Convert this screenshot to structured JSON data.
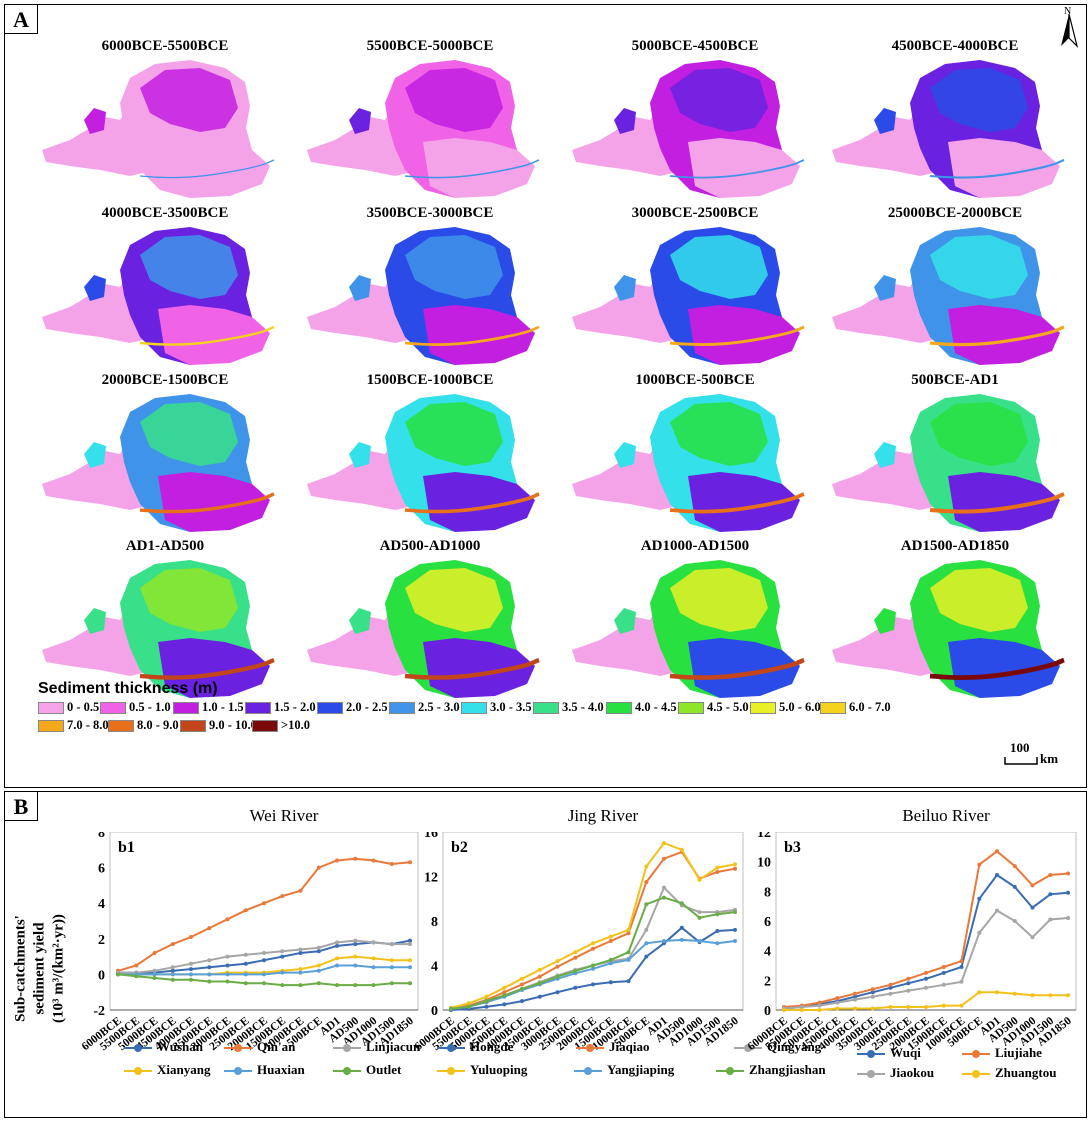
{
  "panel_a": {
    "tag": "A",
    "north": "N",
    "maps": [
      {
        "title": "6000BCE-5500BCE",
        "level": 0.05
      },
      {
        "title": "5500BCE-5000BCE",
        "level": 0.12
      },
      {
        "title": "5000BCE-4500BCE",
        "level": 0.2
      },
      {
        "title": "4500BCE-4000BCE",
        "level": 0.28
      },
      {
        "title": "4000BCE-3500BCE",
        "level": 0.36
      },
      {
        "title": "3500BCE-3000BCE",
        "level": 0.42
      },
      {
        "title": "3000BCE-2500BCE",
        "level": 0.48
      },
      {
        "title": "25000BCE-2000BCE",
        "level": 0.54
      },
      {
        "title": "2000BCE-1500BCE",
        "level": 0.6
      },
      {
        "title": "1500BCE-1000BCE",
        "level": 0.66
      },
      {
        "title": "1000BCE-500BCE",
        "level": 0.7
      },
      {
        "title": "500BCE-AD1",
        "level": 0.74
      },
      {
        "title": "AD1-AD500",
        "level": 0.82
      },
      {
        "title": "AD500-AD1000",
        "level": 0.86
      },
      {
        "title": "AD1000-AD1500",
        "level": 0.9
      },
      {
        "title": "AD1500-AD1850",
        "level": 0.94
      }
    ],
    "legend_title": "Sediment thickness (m)",
    "legend": [
      {
        "label": "0 - 0.5",
        "color": "#f5a3e8"
      },
      {
        "label": "0.5 - 1.0",
        "color": "#f062e6"
      },
      {
        "label": "1.0 - 1.5",
        "color": "#c21fe0"
      },
      {
        "label": "1.5 - 2.0",
        "color": "#6a22e0"
      },
      {
        "label": "2.0 - 2.5",
        "color": "#2a4be8"
      },
      {
        "label": "2.5 - 3.0",
        "color": "#3f94ea"
      },
      {
        "label": "3.0 - 3.5",
        "color": "#34e0ea"
      },
      {
        "label": "3.5 - 4.0",
        "color": "#38e08a"
      },
      {
        "label": "4.0 - 4.5",
        "color": "#28e040"
      },
      {
        "label": "4.5 - 5.0",
        "color": "#8ee628"
      },
      {
        "label": "5.0 - 6.0",
        "color": "#e8f028"
      },
      {
        "label": "6.0 - 7.0",
        "color": "#f5d21c"
      },
      {
        "label": "7.0 - 8.0",
        "color": "#f5a81c"
      },
      {
        "label": "8.0 - 9.0",
        "color": "#e8701a"
      },
      {
        "label": "9.0 - 10.0",
        "color": "#c2461a"
      },
      {
        "label": ">10.0",
        "color": "#7a0a0a"
      }
    ],
    "scale_value": "100",
    "scale_unit": "km"
  },
  "panel_b": {
    "tag": "B",
    "ylabel_1": "Sub-catchments'",
    "ylabel_2": "sediment yield",
    "ylabel_3": "(10³ m³/(km²·yr))"
  },
  "chart_data": [
    {
      "type": "line",
      "panel": "b1",
      "title": "Wei River",
      "categories": [
        "6000BCE",
        "5500BCE",
        "5000BCE",
        "4500BCE",
        "4000BCE",
        "3500BCE",
        "3000BCE",
        "2500BCE",
        "2000BCE",
        "1500BCE",
        "1000BCE",
        "500BCE",
        "AD1",
        "AD500",
        "AD1000",
        "AD1500",
        "AD1850"
      ],
      "ylim": [
        -2,
        8
      ],
      "yticks": [
        -2,
        0,
        2,
        4,
        6,
        8
      ],
      "series": [
        {
          "name": "Wushan",
          "color": "#3a6cb4",
          "values": [
            0.1,
            0.1,
            0.1,
            0.2,
            0.3,
            0.4,
            0.5,
            0.6,
            0.8,
            1.0,
            1.2,
            1.3,
            1.6,
            1.7,
            1.8,
            1.7,
            1.9
          ]
        },
        {
          "name": "Qin'an",
          "color": "#e8793a",
          "values": [
            0.2,
            0.5,
            1.2,
            1.7,
            2.1,
            2.6,
            3.1,
            3.6,
            4.0,
            4.4,
            4.7,
            6.0,
            6.4,
            6.5,
            6.4,
            6.2,
            6.3
          ]
        },
        {
          "name": "Linjiacun",
          "color": "#a6a6a6",
          "values": [
            0.1,
            0.1,
            0.2,
            0.4,
            0.6,
            0.8,
            1.0,
            1.1,
            1.2,
            1.3,
            1.4,
            1.5,
            1.8,
            1.9,
            1.8,
            1.7,
            1.7
          ]
        },
        {
          "name": "Xianyang",
          "color": "#f2c21a",
          "values": [
            0.0,
            0.0,
            0.0,
            0.0,
            0.0,
            0.0,
            0.1,
            0.1,
            0.1,
            0.2,
            0.3,
            0.5,
            0.9,
            1.0,
            0.9,
            0.8,
            0.8
          ]
        },
        {
          "name": "Huaxian",
          "color": "#5aa0d8",
          "values": [
            0.0,
            0.0,
            0.0,
            0.0,
            0.0,
            0.0,
            0.0,
            0.0,
            0.0,
            0.1,
            0.1,
            0.2,
            0.5,
            0.5,
            0.4,
            0.4,
            0.4
          ]
        },
        {
          "name": "Outlet",
          "color": "#6aac46",
          "values": [
            0.0,
            -0.1,
            -0.2,
            -0.3,
            -0.3,
            -0.4,
            -0.4,
            -0.5,
            -0.5,
            -0.6,
            -0.6,
            -0.5,
            -0.6,
            -0.6,
            -0.6,
            -0.5,
            -0.5
          ]
        }
      ]
    },
    {
      "type": "line",
      "panel": "b2",
      "title": "Jing River",
      "categories": [
        "6000BCE",
        "5500BCE",
        "5000BCE",
        "4500BCE",
        "4000BCE",
        "3500BCE",
        "3000BCE",
        "2500BCE",
        "2000BCE",
        "1500BCE",
        "1000BCE",
        "500BCE",
        "AD1",
        "AD500",
        "AD1000",
        "AD1500",
        "AD1850"
      ],
      "ylim": [
        0,
        16
      ],
      "yticks": [
        0,
        4,
        8,
        12,
        16
      ],
      "series": [
        {
          "name": "Hongde",
          "color": "#3a6cb4",
          "values": [
            0.0,
            0.1,
            0.3,
            0.5,
            0.8,
            1.2,
            1.6,
            2.0,
            2.3,
            2.5,
            2.6,
            4.8,
            6.0,
            7.4,
            6.1,
            7.1,
            7.2
          ]
        },
        {
          "name": "Jiaqiao",
          "color": "#e8793a",
          "values": [
            0.1,
            0.4,
            0.9,
            1.6,
            2.3,
            3.0,
            3.9,
            4.7,
            5.5,
            6.2,
            6.9,
            11.5,
            13.6,
            14.2,
            11.8,
            12.4,
            12.7
          ]
        },
        {
          "name": "Qingyang",
          "color": "#a6a6a6",
          "values": [
            0.1,
            0.3,
            0.8,
            1.3,
            1.9,
            2.5,
            3.1,
            3.6,
            4.0,
            4.4,
            4.6,
            7.2,
            11.0,
            9.4,
            8.8,
            8.8,
            9.0
          ]
        },
        {
          "name": "Yuluoping",
          "color": "#f2c21a",
          "values": [
            0.2,
            0.6,
            1.2,
            2.0,
            2.8,
            3.6,
            4.4,
            5.2,
            6.0,
            6.6,
            7.2,
            12.9,
            15.0,
            14.4,
            11.7,
            12.8,
            13.1
          ]
        },
        {
          "name": "Yangjiaping",
          "color": "#5aa0d8",
          "values": [
            0.1,
            0.3,
            0.7,
            1.2,
            1.8,
            2.3,
            2.8,
            3.3,
            3.7,
            4.2,
            4.5,
            6.0,
            6.2,
            6.3,
            6.2,
            6.0,
            6.2
          ]
        },
        {
          "name": "Zhangjiashan",
          "color": "#6aac46",
          "values": [
            0.1,
            0.3,
            0.8,
            1.3,
            1.9,
            2.4,
            3.0,
            3.5,
            4.0,
            4.5,
            5.2,
            9.5,
            10.1,
            9.6,
            8.3,
            8.6,
            8.8
          ]
        }
      ]
    },
    {
      "type": "line",
      "panel": "b3",
      "title": "Beiluo River",
      "categories": [
        "6000BCE",
        "5500BCE",
        "5000BCE",
        "4500BCE",
        "4000BCE",
        "3500BCE",
        "3000BCE",
        "2500BCE",
        "2000BCE",
        "1500BCE",
        "1000BCE",
        "500BCE",
        "AD1",
        "AD500",
        "AD1000",
        "AD1500",
        "AD1850"
      ],
      "ylim": [
        0,
        12
      ],
      "yticks": [
        0,
        2,
        4,
        6,
        8,
        10,
        12
      ],
      "series": [
        {
          "name": "Wuqi",
          "color": "#3a6cb4",
          "values": [
            0.1,
            0.2,
            0.4,
            0.6,
            0.9,
            1.2,
            1.5,
            1.8,
            2.1,
            2.5,
            2.9,
            7.5,
            9.1,
            8.3,
            6.9,
            7.8,
            7.9
          ]
        },
        {
          "name": "Liujiahe",
          "color": "#e8793a",
          "values": [
            0.2,
            0.3,
            0.5,
            0.8,
            1.1,
            1.4,
            1.7,
            2.1,
            2.5,
            2.9,
            3.3,
            9.8,
            10.7,
            9.7,
            8.4,
            9.1,
            9.2
          ]
        },
        {
          "name": "Jiaokou",
          "color": "#a6a6a6",
          "values": [
            0.1,
            0.2,
            0.3,
            0.5,
            0.7,
            0.9,
            1.1,
            1.3,
            1.5,
            1.7,
            1.9,
            5.2,
            6.7,
            6.0,
            4.9,
            6.1,
            6.2
          ]
        },
        {
          "name": "Zhuangtou",
          "color": "#f2c21a",
          "values": [
            0.0,
            0.0,
            0.0,
            0.1,
            0.1,
            0.1,
            0.2,
            0.2,
            0.2,
            0.3,
            0.3,
            1.2,
            1.2,
            1.1,
            1.0,
            1.0,
            1.0
          ]
        }
      ]
    }
  ]
}
